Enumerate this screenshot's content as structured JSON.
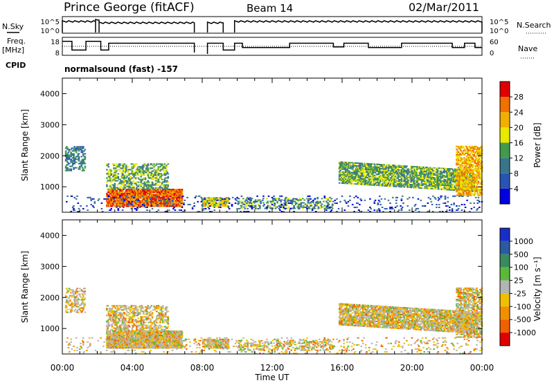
{
  "header": {
    "station": "Prince George (fitACF)",
    "beam": "Beam 14",
    "date": "02/Mar/2011"
  },
  "left_labels": {
    "nsky": "N.Sky",
    "freq_line1": "Freq.",
    "freq_line2": "[MHz]",
    "cpid": "CPID"
  },
  "right_labels": {
    "nsearch": "N.Search",
    "nave": "Nave"
  },
  "cpid_text": "normalsound (fast) -157",
  "chart_data": [
    {
      "type": "line",
      "name": "noise",
      "left_ticks": [
        "10^5",
        "10^0"
      ],
      "right_ticks": [
        "10^5",
        "10^0"
      ],
      "x": [
        0,
        2.0,
        3.0,
        6.5,
        7.5,
        8.3,
        9.5,
        10.0,
        24.0
      ],
      "levels": [
        0.75,
        0.9,
        0.85,
        0.82,
        0.0,
        0.0,
        0.0,
        0.82,
        0.82
      ],
      "gaps": [
        [
          7.55,
          8.3
        ],
        [
          9.2,
          9.85
        ]
      ]
    },
    {
      "type": "line",
      "name": "frequency-nave",
      "left_ticks": [
        "18",
        "8"
      ],
      "right_ticks": [
        "60",
        "0"
      ],
      "freq_steps": [
        [
          0,
          0.6
        ],
        [
          0.6,
          0.95
        ],
        [
          0.95,
          1.25
        ],
        [
          1.25,
          1.1
        ],
        [
          1.1,
          2.2
        ],
        [
          2.2,
          2.6
        ],
        [
          2.6,
          7.5
        ]
      ],
      "gaps": [
        [
          7.55,
          8.3
        ],
        [
          9.2,
          9.85
        ]
      ]
    },
    {
      "type": "heatmap",
      "name": "power",
      "xlim": [
        0,
        24
      ],
      "ylim": [
        180,
        4500
      ],
      "yticks": [
        1000,
        2000,
        3000,
        4000
      ],
      "ylabel": "Slant Range [km]",
      "colorbar": {
        "label": "Power [dB]",
        "ticks": [
          "4",
          "8",
          "12",
          "16",
          "20",
          "24",
          "28"
        ],
        "colors": [
          "#0000e0",
          "#2855b4",
          "#39758a",
          "#419a4d",
          "#e8e800",
          "#f0b000",
          "#f07000",
          "#e00000"
        ]
      }
    },
    {
      "type": "heatmap",
      "name": "velocity",
      "xlim": [
        0,
        24
      ],
      "ylim": [
        180,
        4500
      ],
      "yticks": [
        1000,
        2000,
        3000,
        4000
      ],
      "ylabel": "Slant Range [km]",
      "xticks": [
        "00:00",
        "04:00",
        "08:00",
        "12:00",
        "16:00",
        "20:00",
        "00:00"
      ],
      "xlabel": "Time UT",
      "colorbar": {
        "label": "Velocity [m s⁻¹]",
        "ticks": [
          "1000",
          "500",
          "100",
          "25",
          "-25",
          "-100",
          "-500",
          "-1000"
        ],
        "colors": [
          "#1a2dc8",
          "#2c5aa0",
          "#3a8a60",
          "#5ab83a",
          "#b4b4b4",
          "#f0c000",
          "#f09000",
          "#f06000",
          "#e00000"
        ]
      }
    }
  ]
}
